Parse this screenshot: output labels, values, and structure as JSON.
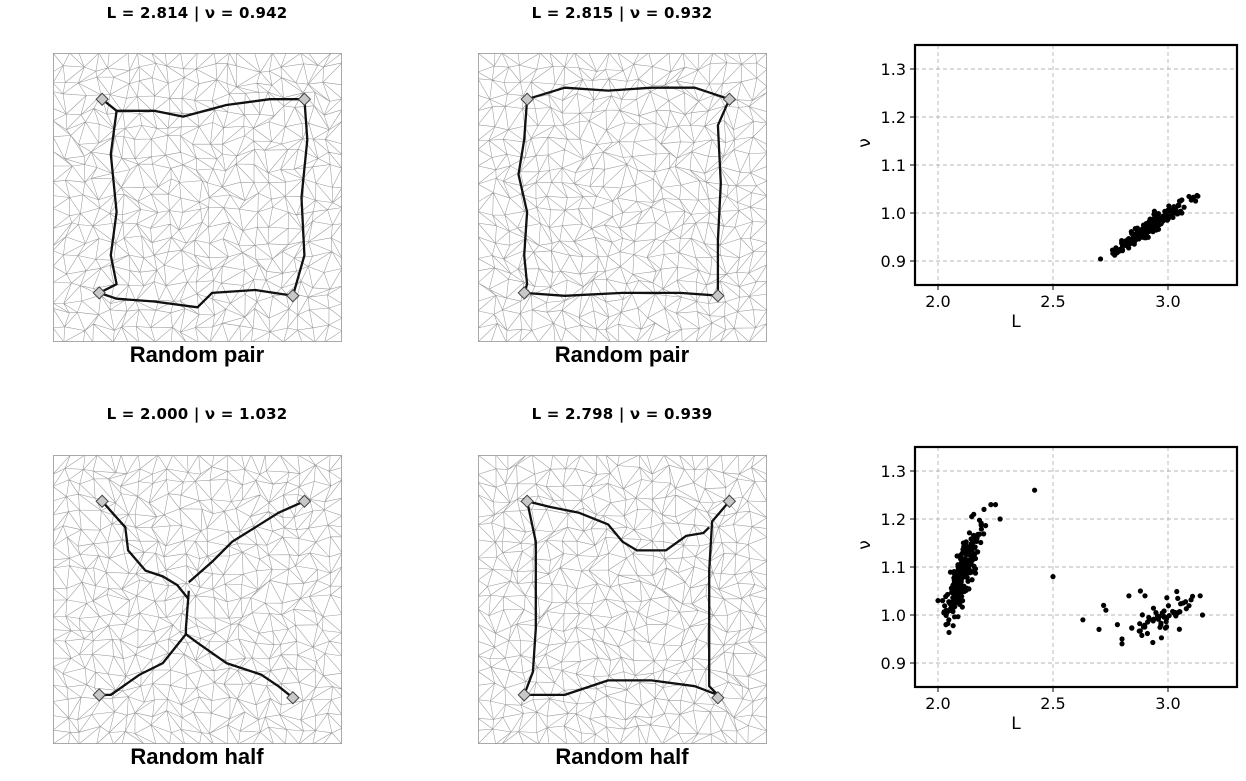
{
  "panels": [
    {
      "title": "L = 2.814 | ν = 0.942",
      "caption": "Random pair",
      "path_type": "square-loop",
      "path": [
        [
          [
            0.17,
            0.16
          ],
          [
            0.22,
            0.2
          ],
          [
            0.35,
            0.2
          ],
          [
            0.45,
            0.22
          ],
          [
            0.6,
            0.18
          ],
          [
            0.75,
            0.16
          ],
          [
            0.87,
            0.16
          ]
        ],
        [
          [
            0.87,
            0.16
          ],
          [
            0.88,
            0.3
          ],
          [
            0.86,
            0.5
          ],
          [
            0.87,
            0.7
          ],
          [
            0.83,
            0.84
          ]
        ],
        [
          [
            0.16,
            0.83
          ],
          [
            0.22,
            0.85
          ],
          [
            0.35,
            0.86
          ],
          [
            0.5,
            0.88
          ],
          [
            0.55,
            0.83
          ],
          [
            0.7,
            0.82
          ],
          [
            0.83,
            0.84
          ]
        ],
        [
          [
            0.22,
            0.2
          ],
          [
            0.2,
            0.35
          ],
          [
            0.22,
            0.55
          ],
          [
            0.2,
            0.7
          ],
          [
            0.22,
            0.8
          ],
          [
            0.16,
            0.83
          ]
        ]
      ]
    },
    {
      "title": "L = 2.815 | ν = 0.932",
      "caption": "Random pair",
      "path_type": "square-loop",
      "path": [
        [
          [
            0.17,
            0.16
          ],
          [
            0.3,
            0.12
          ],
          [
            0.45,
            0.13
          ],
          [
            0.6,
            0.12
          ],
          [
            0.75,
            0.12
          ],
          [
            0.87,
            0.16
          ]
        ],
        [
          [
            0.87,
            0.16
          ],
          [
            0.83,
            0.25
          ],
          [
            0.84,
            0.45
          ],
          [
            0.83,
            0.65
          ],
          [
            0.83,
            0.83
          ],
          [
            0.84,
            0.84
          ]
        ],
        [
          [
            0.16,
            0.83
          ],
          [
            0.3,
            0.84
          ],
          [
            0.5,
            0.83
          ],
          [
            0.7,
            0.83
          ],
          [
            0.84,
            0.84
          ]
        ],
        [
          [
            0.17,
            0.16
          ],
          [
            0.16,
            0.3
          ],
          [
            0.14,
            0.42
          ],
          [
            0.17,
            0.55
          ],
          [
            0.16,
            0.7
          ],
          [
            0.17,
            0.8
          ],
          [
            0.16,
            0.83
          ]
        ]
      ]
    },
    {
      "title": "L = 2.000 | ν = 1.032",
      "caption": "Random half",
      "path_type": "x-shape",
      "path": [
        [
          [
            0.17,
            0.16
          ],
          [
            0.25,
            0.25
          ],
          [
            0.26,
            0.33
          ],
          [
            0.32,
            0.4
          ],
          [
            0.38,
            0.42
          ],
          [
            0.43,
            0.45
          ],
          [
            0.47,
            0.5
          ]
        ],
        [
          [
            0.87,
            0.16
          ],
          [
            0.78,
            0.2
          ],
          [
            0.7,
            0.25
          ],
          [
            0.62,
            0.3
          ],
          [
            0.55,
            0.37
          ],
          [
            0.47,
            0.44
          ]
        ],
        [
          [
            0.47,
            0.47
          ],
          [
            0.46,
            0.6
          ],
          [
            0.46,
            0.62
          ]
        ],
        [
          [
            0.46,
            0.62
          ],
          [
            0.38,
            0.72
          ],
          [
            0.3,
            0.76
          ],
          [
            0.2,
            0.83
          ],
          [
            0.16,
            0.83
          ]
        ],
        [
          [
            0.46,
            0.62
          ],
          [
            0.5,
            0.65
          ],
          [
            0.6,
            0.72
          ],
          [
            0.72,
            0.76
          ],
          [
            0.78,
            0.8
          ],
          [
            0.83,
            0.84
          ]
        ]
      ]
    },
    {
      "title": "L = 2.798 | ν = 0.939",
      "caption": "Random half",
      "path_type": "loop-with-dip",
      "path": [
        [
          [
            0.17,
            0.16
          ],
          [
            0.25,
            0.18
          ],
          [
            0.35,
            0.2
          ],
          [
            0.45,
            0.24
          ],
          [
            0.5,
            0.3
          ],
          [
            0.55,
            0.33
          ],
          [
            0.65,
            0.33
          ],
          [
            0.72,
            0.28
          ],
          [
            0.78,
            0.27
          ],
          [
            0.8,
            0.25
          ]
        ],
        [
          [
            0.87,
            0.16
          ],
          [
            0.81,
            0.23
          ],
          [
            0.8,
            0.4
          ],
          [
            0.8,
            0.6
          ],
          [
            0.8,
            0.8
          ],
          [
            0.83,
            0.83
          ]
        ],
        [
          [
            0.16,
            0.83
          ],
          [
            0.3,
            0.83
          ],
          [
            0.45,
            0.78
          ],
          [
            0.6,
            0.78
          ],
          [
            0.75,
            0.8
          ],
          [
            0.83,
            0.83
          ]
        ],
        [
          [
            0.17,
            0.16
          ],
          [
            0.2,
            0.3
          ],
          [
            0.2,
            0.45
          ],
          [
            0.2,
            0.6
          ],
          [
            0.19,
            0.75
          ],
          [
            0.16,
            0.83
          ]
        ]
      ]
    }
  ],
  "chart_data": [
    {
      "type": "scatter",
      "xlabel": "L",
      "ylabel": "ν",
      "xlim": [
        1.9,
        3.3
      ],
      "ylim": [
        0.85,
        1.35
      ],
      "xticks": [
        "2.0",
        "2.5",
        "3.0"
      ],
      "yticks": [
        "0.9",
        "1.0",
        "1.1",
        "1.2",
        "1.3"
      ],
      "grid": true,
      "point_color": "#000000",
      "clusters": [
        {
          "center": [
            2.92,
            0.97
          ],
          "count": 220,
          "spread_along": 0.07,
          "spread_perp": 0.008,
          "slope": 0.33
        }
      ],
      "points": [
        [
          3.13,
          1.035
        ],
        [
          3.12,
          1.025
        ],
        [
          3.07,
          1.012
        ],
        [
          3.06,
          1.0
        ],
        [
          3.04,
          0.998
        ],
        [
          2.82,
          0.935
        ],
        [
          2.83,
          0.94
        ]
      ]
    },
    {
      "type": "scatter",
      "xlabel": "L",
      "ylabel": "ν",
      "xlim": [
        1.9,
        3.3
      ],
      "ylim": [
        0.85,
        1.35
      ],
      "xticks": [
        "2.0",
        "2.5",
        "3.0"
      ],
      "yticks": [
        "0.9",
        "1.0",
        "1.1",
        "1.2",
        "1.3"
      ],
      "grid": true,
      "point_color": "#000000",
      "clusters": [
        {
          "center": [
            2.11,
            1.09
          ],
          "count": 240,
          "spread_along": 0.04,
          "spread_perp": 0.025,
          "slope": 1.0
        },
        {
          "center": [
            2.98,
            1.0
          ],
          "count": 55,
          "spread_along": 0.09,
          "spread_perp": 0.014,
          "slope": 0.2
        }
      ],
      "points": [
        [
          2.42,
          1.26
        ],
        [
          2.5,
          1.08
        ],
        [
          2.63,
          0.99
        ],
        [
          2.72,
          1.02
        ],
        [
          2.73,
          1.01
        ],
        [
          2.7,
          0.97
        ],
        [
          2.78,
          0.98
        ],
        [
          2.8,
          0.95
        ],
        [
          2.8,
          0.94
        ],
        [
          2.83,
          1.04
        ],
        [
          2.88,
          1.05
        ],
        [
          2.9,
          1.04
        ],
        [
          2.23,
          1.23
        ],
        [
          2.25,
          1.23
        ],
        [
          2.2,
          1.22
        ],
        [
          2.27,
          1.2
        ],
        [
          2.0,
          1.03
        ],
        [
          2.02,
          1.03
        ],
        [
          3.14,
          1.04
        ],
        [
          3.15,
          1.0
        ]
      ]
    }
  ]
}
